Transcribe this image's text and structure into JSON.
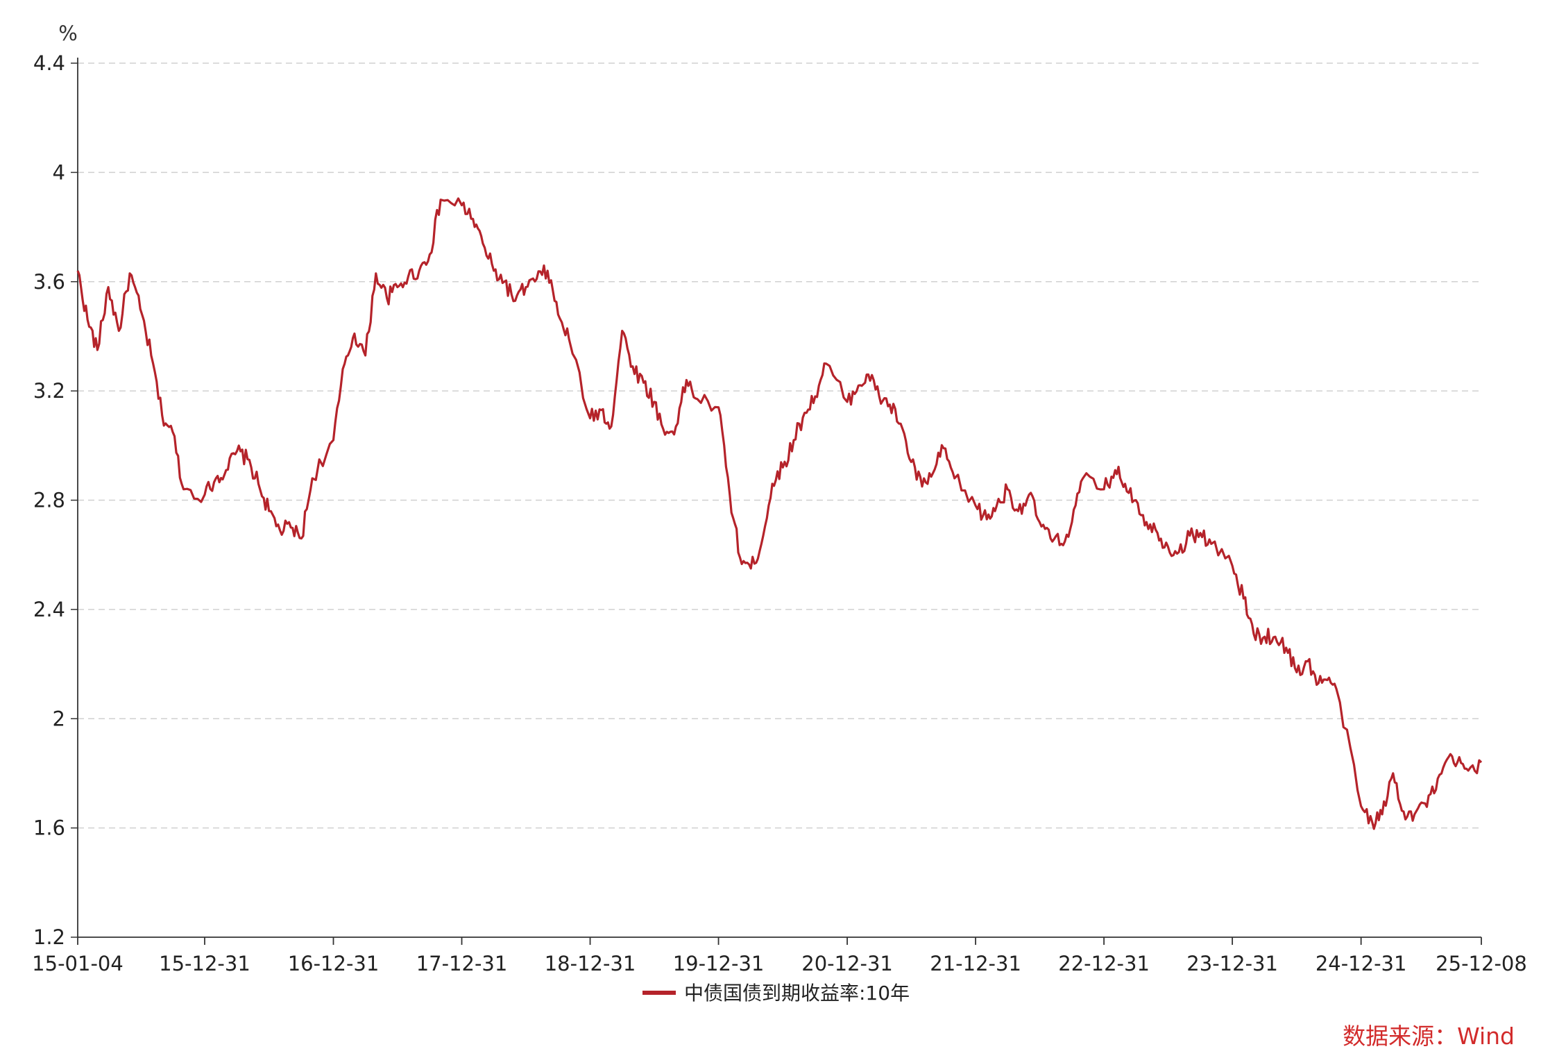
{
  "chart_data": {
    "type": "line",
    "ylabel": "%",
    "ylim": [
      1.2,
      4.4
    ],
    "yticks": [
      1.2,
      1.6,
      2,
      2.4,
      2.8,
      3.2,
      3.6,
      4,
      4.4
    ],
    "ytick_labels": [
      "1.2",
      "1.6",
      "2",
      "2.4",
      "2.8",
      "3.2",
      "3.6",
      "4",
      "4.4"
    ],
    "xlim": [
      "2015-01-04",
      "2025-12-08"
    ],
    "xticks": [
      "2015-01-04",
      "2015-12-31",
      "2016-12-31",
      "2017-12-31",
      "2018-12-31",
      "2019-12-31",
      "2020-12-31",
      "2021-12-31",
      "2022-12-31",
      "2023-12-31",
      "2024-12-31",
      "2025-12-08"
    ],
    "xtick_labels": [
      "15-01-04",
      "15-12-31",
      "16-12-31",
      "17-12-31",
      "18-12-31",
      "19-12-31",
      "20-12-31",
      "21-12-31",
      "22-12-31",
      "23-12-31",
      "24-12-31",
      "25-12-08"
    ],
    "grid": "horizontal-dashed",
    "legend_position": "bottom-center",
    "series": [
      {
        "name": "中债国债到期收益率:10年",
        "color": "#b5232a",
        "x": [
          "2015-01-04",
          "2015-02-01",
          "2015-03-01",
          "2015-04-01",
          "2015-05-01",
          "2015-06-01",
          "2015-07-01",
          "2015-08-01",
          "2015-09-01",
          "2015-10-01",
          "2015-11-01",
          "2015-12-31",
          "2016-02-01",
          "2016-03-01",
          "2016-04-01",
          "2016-05-01",
          "2016-06-01",
          "2016-07-01",
          "2016-08-01",
          "2016-09-01",
          "2016-10-01",
          "2016-11-01",
          "2016-12-31",
          "2017-02-01",
          "2017-03-01",
          "2017-04-01",
          "2017-05-01",
          "2017-06-01",
          "2017-07-01",
          "2017-08-01",
          "2017-09-01",
          "2017-10-01",
          "2017-11-01",
          "2017-12-31",
          "2018-02-01",
          "2018-03-01",
          "2018-04-01",
          "2018-05-01",
          "2018-06-01",
          "2018-07-01",
          "2018-08-01",
          "2018-09-01",
          "2018-10-01",
          "2018-11-01",
          "2018-12-31",
          "2019-02-01",
          "2019-03-01",
          "2019-04-01",
          "2019-05-01",
          "2019-06-01",
          "2019-07-01",
          "2019-08-01",
          "2019-09-01",
          "2019-10-01",
          "2019-11-01",
          "2019-12-31",
          "2020-02-01",
          "2020-03-01",
          "2020-04-01",
          "2020-05-01",
          "2020-06-01",
          "2020-07-01",
          "2020-08-01",
          "2020-09-01",
          "2020-10-01",
          "2020-11-01",
          "2020-12-31",
          "2021-02-01",
          "2021-03-01",
          "2021-04-01",
          "2021-05-01",
          "2021-06-01",
          "2021-07-01",
          "2021-08-01",
          "2021-09-01",
          "2021-10-01",
          "2021-11-01",
          "2021-12-31",
          "2022-02-01",
          "2022-03-01",
          "2022-04-01",
          "2022-05-01",
          "2022-06-01",
          "2022-07-01",
          "2022-08-01",
          "2022-09-01",
          "2022-10-01",
          "2022-11-01",
          "2022-12-31",
          "2023-02-01",
          "2023-03-01",
          "2023-04-01",
          "2023-05-01",
          "2023-06-01",
          "2023-07-01",
          "2023-08-01",
          "2023-09-01",
          "2023-10-01",
          "2023-11-01",
          "2023-12-31",
          "2024-02-01",
          "2024-03-01",
          "2024-04-01",
          "2024-05-01",
          "2024-06-01",
          "2024-07-01",
          "2024-08-01",
          "2024-09-01",
          "2024-10-01",
          "2024-11-01",
          "2024-12-31",
          "2025-02-01",
          "2025-03-01",
          "2025-04-01",
          "2025-05-01",
          "2025-06-01",
          "2025-07-01",
          "2025-08-01",
          "2025-09-01",
          "2025-10-01",
          "2025-11-01",
          "2025-12-08"
        ],
        "values": [
          3.64,
          3.46,
          3.35,
          3.58,
          3.42,
          3.63,
          3.5,
          3.33,
          3.11,
          3.05,
          2.84,
          2.82,
          2.88,
          2.91,
          2.98,
          2.95,
          2.86,
          2.76,
          2.69,
          2.7,
          2.66,
          2.88,
          3.02,
          3.3,
          3.41,
          3.33,
          3.63,
          3.54,
          3.58,
          3.62,
          3.64,
          3.7,
          3.9,
          3.88,
          3.83,
          3.74,
          3.64,
          3.6,
          3.53,
          3.58,
          3.61,
          3.64,
          3.48,
          3.39,
          3.1,
          3.13,
          3.07,
          3.42,
          3.29,
          3.23,
          3.16,
          3.04,
          3.07,
          3.24,
          3.17,
          3.14,
          2.82,
          2.59,
          2.55,
          2.64,
          2.86,
          2.92,
          3.02,
          3.12,
          3.18,
          3.3,
          3.16,
          3.22,
          3.26,
          3.18,
          3.15,
          3.08,
          2.94,
          2.85,
          2.9,
          2.99,
          2.88,
          2.78,
          2.73,
          2.78,
          2.84,
          2.76,
          2.82,
          2.72,
          2.66,
          2.64,
          2.72,
          2.88,
          2.84,
          2.91,
          2.86,
          2.8,
          2.72,
          2.68,
          2.63,
          2.61,
          2.67,
          2.68,
          2.64,
          2.56,
          2.44,
          2.31,
          2.3,
          2.3,
          2.26,
          2.17,
          2.21,
          2.13,
          2.15,
          2.06,
          1.68,
          1.62,
          1.65,
          1.8,
          1.66,
          1.65,
          1.69,
          1.74,
          1.85,
          1.84,
          1.81,
          1.84
        ]
      }
    ],
    "source": "数据来源：Wind"
  }
}
